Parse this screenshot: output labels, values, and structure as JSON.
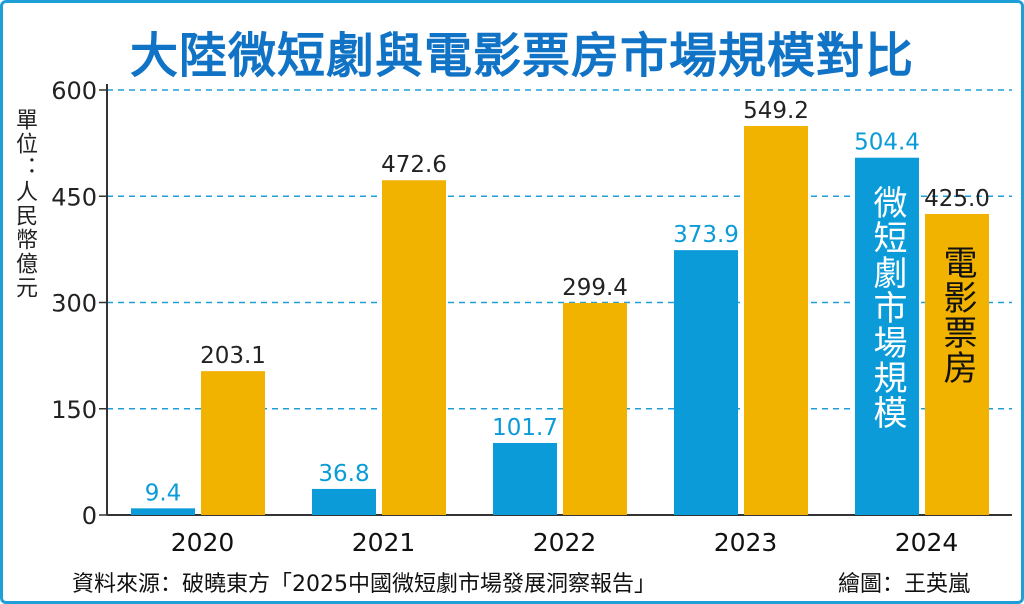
{
  "title": "大陸微短劇與電影票房市場規模對比",
  "unit_label": "單位：人民幣億元",
  "source": "資料來源：破曉東方「2025中國微短劇市場發展洞察報告」",
  "credit": "繪圖：王英嵐",
  "colors": {
    "short_drama": "#0a9bd8",
    "box_office": "#f2b200",
    "grid": "#1f9fd8",
    "title": "#1173c5"
  },
  "chart_data": {
    "type": "bar",
    "categories": [
      "2020",
      "2021",
      "2022",
      "2023",
      "2024"
    ],
    "series": [
      {
        "name": "微短劇市場規模",
        "values": [
          9.4,
          36.8,
          101.7,
          373.9,
          504.4
        ],
        "labels": [
          "9.4",
          "36.8",
          "101.7",
          "373.9",
          "504.4"
        ]
      },
      {
        "name": "電影票房",
        "values": [
          203.1,
          472.6,
          299.4,
          549.2,
          425.0
        ],
        "labels": [
          "203.1",
          "472.6",
          "299.4",
          "549.2",
          "425.0"
        ]
      }
    ],
    "yticks": [
      "0",
      "150",
      "300",
      "450",
      "600"
    ],
    "ylim": [
      0,
      600
    ],
    "grid": true,
    "legend": "inside-bars-2024"
  }
}
